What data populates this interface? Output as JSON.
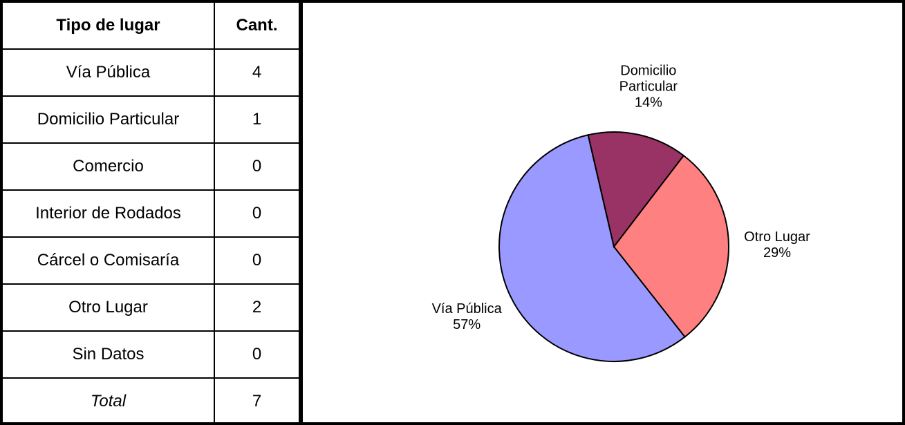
{
  "table": {
    "columns": [
      "Tipo de lugar",
      "Cant."
    ],
    "rows": [
      [
        "Vía Pública",
        "4"
      ],
      [
        "Domicilio Particular",
        "1"
      ],
      [
        "Comercio",
        "0"
      ],
      [
        "Interior de Rodados",
        "0"
      ],
      [
        "Cárcel o Comisaría",
        "0"
      ],
      [
        "Otro Lugar",
        "2"
      ],
      [
        "Sin Datos",
        "0"
      ]
    ],
    "total": [
      "Total",
      "7"
    ]
  },
  "chart_data": {
    "type": "pie",
    "categories": [
      "Vía Pública",
      "Domicilio Particular",
      "Otro Lugar"
    ],
    "values": [
      57,
      14,
      29
    ],
    "value_labels": [
      "57%",
      "14%",
      "29%"
    ],
    "colors": [
      "#9999ff",
      "#993366",
      "#ff8080"
    ]
  }
}
